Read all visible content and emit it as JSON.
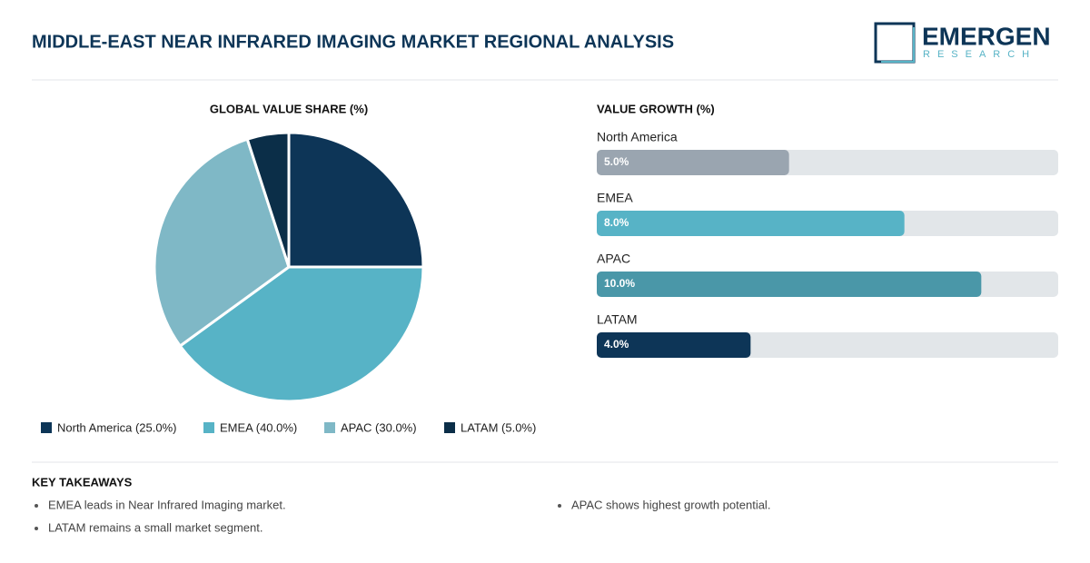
{
  "header": {
    "title": "MIDDLE-EAST NEAR INFRARED IMAGING MARKET REGIONAL ANALYSIS",
    "logo_main": "EMERGEN",
    "logo_sub": "RESEARCH"
  },
  "chart_data": [
    {
      "type": "pie",
      "title": "GLOBAL VALUE SHARE (%)",
      "categories": [
        "North America (25.0%)",
        "EMEA (40.0%)",
        "APAC (30.0%)",
        "LATAM (5.0%)"
      ],
      "values": [
        25,
        40,
        30,
        5
      ],
      "colors": [
        "#0d3557",
        "#57b3c6",
        "#7fb8c6",
        "#0b2e48"
      ]
    },
    {
      "type": "bar",
      "orientation": "horizontal",
      "title": "VALUE GROWTH (%)",
      "categories": [
        "North America",
        "EMEA",
        "APAC",
        "LATAM"
      ],
      "values": [
        5,
        8,
        10,
        4
      ],
      "value_labels": [
        "5.0%",
        "8.0%",
        "10.0%",
        "4.0%"
      ],
      "colors": [
        "#9aa5b0",
        "#57b3c6",
        "#4a97a8",
        "#0d3557"
      ],
      "xlim": [
        0,
        12
      ]
    }
  ],
  "key_takeaways": {
    "title": "KEY TAKEAWAYS",
    "items": [
      "EMEA leads in Near Infrared Imaging market.",
      "APAC shows highest growth potential.",
      "LATAM remains a small market segment."
    ]
  }
}
